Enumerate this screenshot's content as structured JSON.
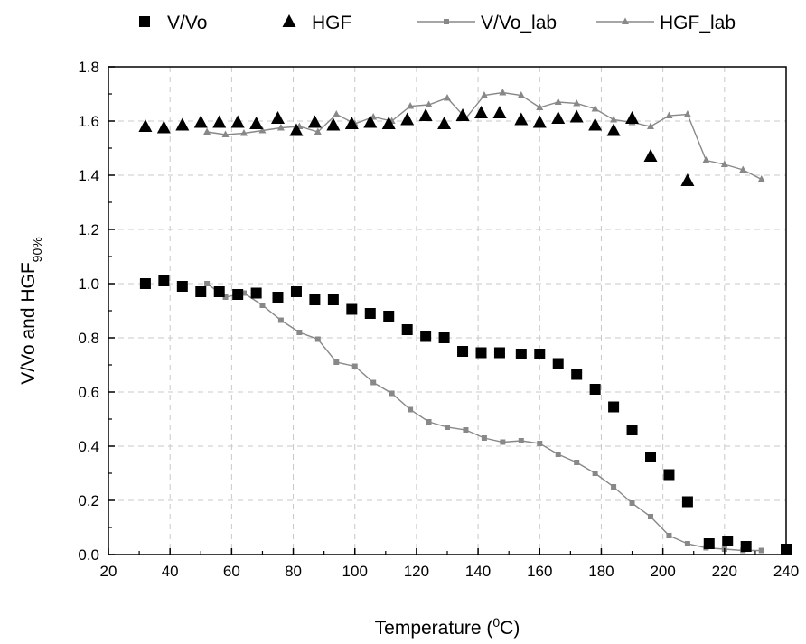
{
  "chart_data": {
    "type": "scatter",
    "xlabel": "Temperature (",
    "xlabel_sup": "0",
    "xlabel_end": "C)",
    "ylabel": "V/Vo and HGF",
    "ylabel_sub": "90%",
    "xlim": [
      20,
      240
    ],
    "ylim": [
      0.0,
      1.8
    ],
    "xticks": [
      "20",
      "40",
      "60",
      "80",
      "100",
      "120",
      "140",
      "160",
      "180",
      "200",
      "220",
      "240"
    ],
    "yticks": [
      "0.0",
      "0.2",
      "0.4",
      "0.6",
      "0.8",
      "1.0",
      "1.2",
      "1.4",
      "1.6",
      "1.8"
    ],
    "grid": true,
    "legend_position": "top",
    "series": [
      {
        "name": "V/Vo",
        "marker": "square",
        "line": false,
        "color": "#000000",
        "points": [
          [
            32,
            1.0
          ],
          [
            38,
            1.01
          ],
          [
            44,
            0.99
          ],
          [
            50,
            0.97
          ],
          [
            56,
            0.97
          ],
          [
            62,
            0.96
          ],
          [
            68,
            0.965
          ],
          [
            75,
            0.95
          ],
          [
            81,
            0.97
          ],
          [
            87,
            0.94
          ],
          [
            93,
            0.94
          ],
          [
            99,
            0.905
          ],
          [
            105,
            0.89
          ],
          [
            111,
            0.88
          ],
          [
            117,
            0.83
          ],
          [
            123,
            0.805
          ],
          [
            129,
            0.8
          ],
          [
            135,
            0.75
          ],
          [
            141,
            0.745
          ],
          [
            147,
            0.745
          ],
          [
            154,
            0.74
          ],
          [
            160,
            0.74
          ],
          [
            166,
            0.705
          ],
          [
            172,
            0.665
          ],
          [
            178,
            0.61
          ],
          [
            184,
            0.545
          ],
          [
            190,
            0.46
          ],
          [
            196,
            0.36
          ],
          [
            202,
            0.295
          ],
          [
            208,
            0.195
          ],
          [
            215,
            0.04
          ],
          [
            221,
            0.05
          ],
          [
            227,
            0.03
          ],
          [
            240,
            0.02
          ]
        ]
      },
      {
        "name": "HGF",
        "marker": "triangle",
        "line": false,
        "color": "#000000",
        "points": [
          [
            32,
            1.58
          ],
          [
            38,
            1.575
          ],
          [
            44,
            1.585
          ],
          [
            50,
            1.595
          ],
          [
            56,
            1.595
          ],
          [
            62,
            1.595
          ],
          [
            68,
            1.59
          ],
          [
            75,
            1.61
          ],
          [
            81,
            1.565
          ],
          [
            87,
            1.595
          ],
          [
            93,
            1.585
          ],
          [
            99,
            1.59
          ],
          [
            105,
            1.595
          ],
          [
            111,
            1.59
          ],
          [
            117,
            1.605
          ],
          [
            123,
            1.62
          ],
          [
            129,
            1.59
          ],
          [
            135,
            1.62
          ],
          [
            141,
            1.63
          ],
          [
            147,
            1.63
          ],
          [
            154,
            1.605
          ],
          [
            160,
            1.595
          ],
          [
            166,
            1.61
          ],
          [
            172,
            1.615
          ],
          [
            178,
            1.585
          ],
          [
            184,
            1.565
          ],
          [
            190,
            1.61
          ],
          [
            196,
            1.47
          ],
          [
            208,
            1.38
          ]
        ]
      },
      {
        "name": "V/Vo_lab",
        "marker": "small-square",
        "line": true,
        "color": "#888888",
        "points": [
          [
            52,
            1.0
          ],
          [
            58,
            0.95
          ],
          [
            64,
            0.965
          ],
          [
            70,
            0.92
          ],
          [
            76,
            0.865
          ],
          [
            82,
            0.82
          ],
          [
            88,
            0.795
          ],
          [
            94,
            0.71
          ],
          [
            100,
            0.695
          ],
          [
            106,
            0.635
          ],
          [
            112,
            0.595
          ],
          [
            118,
            0.535
          ],
          [
            124,
            0.49
          ],
          [
            130,
            0.47
          ],
          [
            136,
            0.46
          ],
          [
            142,
            0.43
          ],
          [
            148,
            0.415
          ],
          [
            154,
            0.42
          ],
          [
            160,
            0.41
          ],
          [
            166,
            0.37
          ],
          [
            172,
            0.34
          ],
          [
            178,
            0.3
          ],
          [
            184,
            0.25
          ],
          [
            190,
            0.19
          ],
          [
            196,
            0.14
          ],
          [
            202,
            0.07
          ],
          [
            208,
            0.04
          ],
          [
            214,
            0.025
          ],
          [
            220,
            0.02
          ],
          [
            226,
            0.015
          ],
          [
            232,
            0.015
          ]
        ]
      },
      {
        "name": "HGF_lab",
        "marker": "small-triangle",
        "line": true,
        "color": "#888888",
        "points": [
          [
            52,
            1.56
          ],
          [
            58,
            1.55
          ],
          [
            64,
            1.555
          ],
          [
            70,
            1.565
          ],
          [
            76,
            1.575
          ],
          [
            82,
            1.58
          ],
          [
            88,
            1.56
          ],
          [
            94,
            1.625
          ],
          [
            100,
            1.59
          ],
          [
            106,
            1.615
          ],
          [
            112,
            1.6
          ],
          [
            118,
            1.655
          ],
          [
            124,
            1.66
          ],
          [
            130,
            1.685
          ],
          [
            136,
            1.61
          ],
          [
            142,
            1.695
          ],
          [
            148,
            1.705
          ],
          [
            154,
            1.695
          ],
          [
            160,
            1.65
          ],
          [
            166,
            1.67
          ],
          [
            172,
            1.665
          ],
          [
            178,
            1.645
          ],
          [
            184,
            1.605
          ],
          [
            190,
            1.595
          ],
          [
            196,
            1.58
          ],
          [
            202,
            1.62
          ],
          [
            208,
            1.625
          ],
          [
            214,
            1.455
          ],
          [
            220,
            1.44
          ],
          [
            226,
            1.42
          ],
          [
            232,
            1.385
          ]
        ]
      }
    ]
  }
}
